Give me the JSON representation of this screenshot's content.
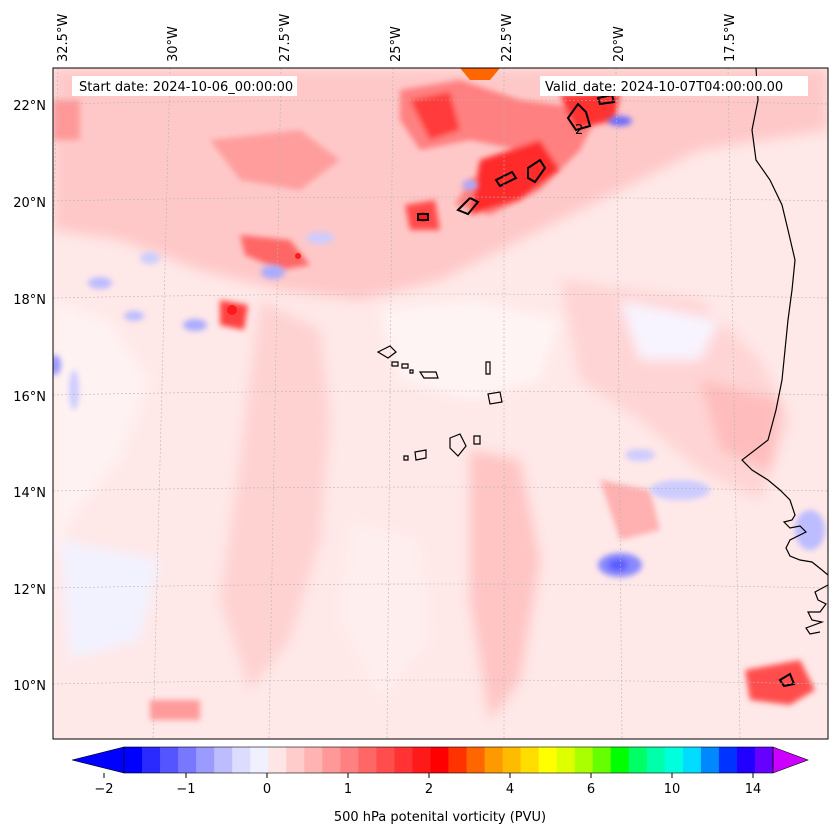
{
  "header": {
    "start_date": "Start date: 2024-10-06_00:00:00",
    "valid_date": "Valid_date: 2024-10-07T04:00:00.00"
  },
  "lon_labels": [
    "32.5°W",
    "30°W",
    "27.5°W",
    "25°W",
    "22.5°W",
    "20°W",
    "17.5°W"
  ],
  "lat_labels": [
    "22°N",
    "20°N",
    "18°N",
    "16°N",
    "14°N",
    "12°N",
    "10°N"
  ],
  "contour_label": "2",
  "colorbar": {
    "label": "500 hPa potenital vorticity (PVU)",
    "tick_labels": [
      "−2",
      "−1",
      "0",
      "1",
      "2",
      "4",
      "6",
      "10",
      "14"
    ],
    "colors": [
      "#0000ff",
      "#2a2aff",
      "#5555ff",
      "#7878ff",
      "#9a9aff",
      "#bcbcff",
      "#dcdcff",
      "#f0f0ff",
      "#ffe6e6",
      "#ffcccc",
      "#ffb3b3",
      "#ff9999",
      "#ff8080",
      "#ff6666",
      "#ff4d4d",
      "#ff3333",
      "#ff1a1a",
      "#ff0000",
      "#ff3300",
      "#ff6600",
      "#ff9900",
      "#ffbb00",
      "#ffdd00",
      "#ffff00",
      "#ddff00",
      "#aaff00",
      "#66ff00",
      "#00ff00",
      "#00ff66",
      "#00ffaa",
      "#00ffdd",
      "#00ddff",
      "#0088ff",
      "#0033ff",
      "#2200ff",
      "#6600ff"
    ],
    "under_color": "#0000ff",
    "over_color": "#cc00ff"
  },
  "colors": {
    "background_field": "#ffe6e6",
    "coastline": "#000000"
  }
}
